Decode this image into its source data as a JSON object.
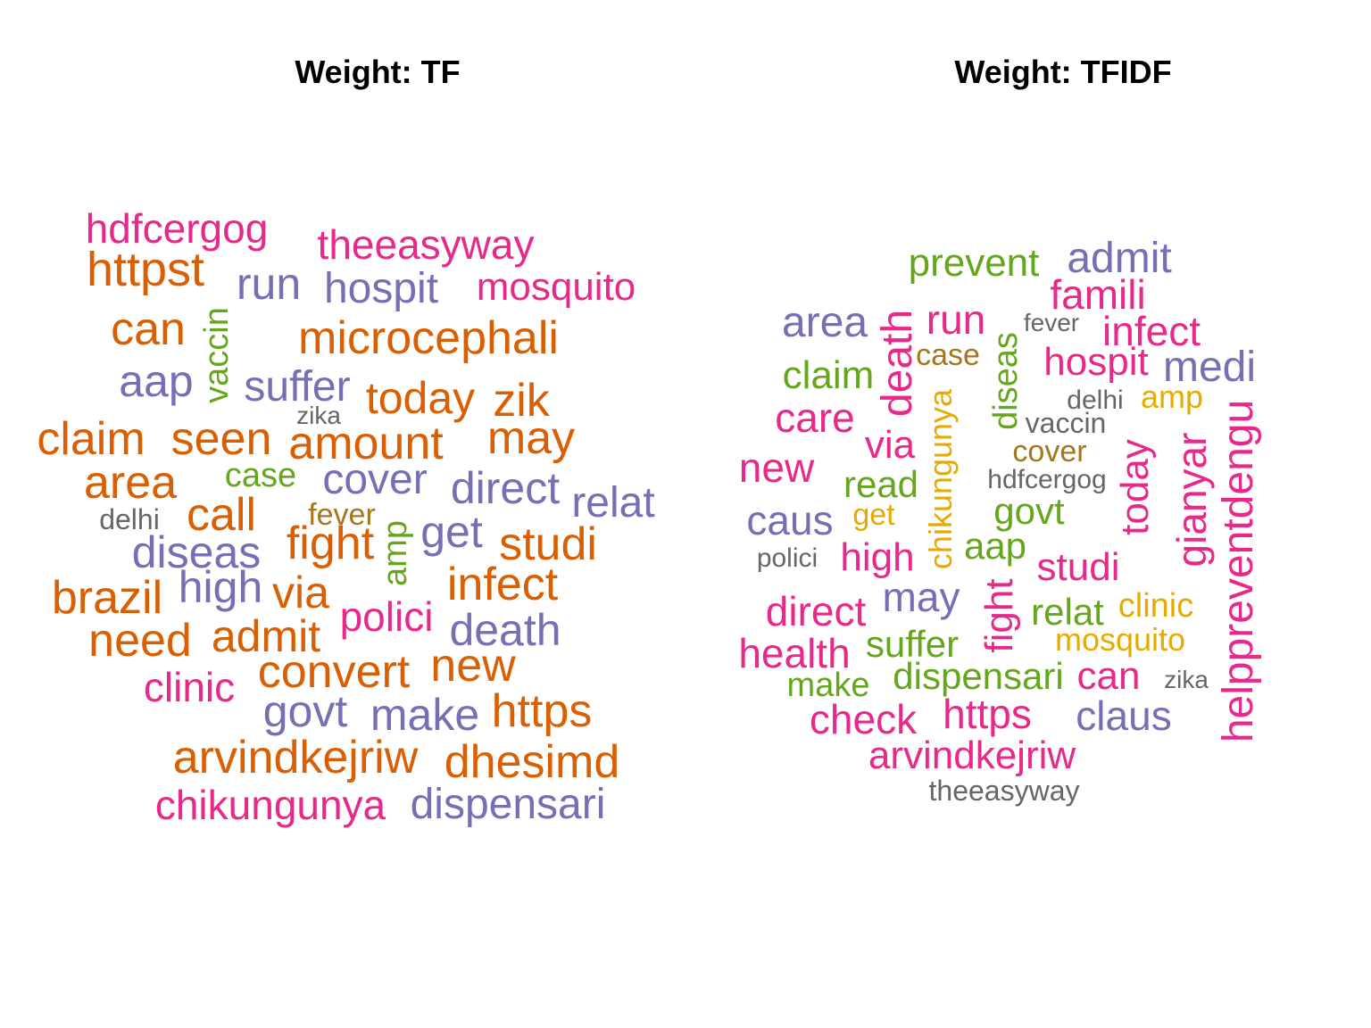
{
  "colors": {
    "orange": "#D95F02",
    "purple": "#7570B3",
    "pink": "#E7298A",
    "green": "#66A61E",
    "yellow": "#E6AB02",
    "brown": "#A6761D",
    "gray": "#666666"
  },
  "panels": [
    {
      "title": "Weight: TF",
      "words": [
        {
          "text": "hdfcergog",
          "color": "pink",
          "size": 46
        },
        {
          "text": "theeasyway",
          "color": "pink",
          "size": 46
        },
        {
          "text": "httpst",
          "color": "orange",
          "size": 54
        },
        {
          "text": "run",
          "color": "purple",
          "size": 50
        },
        {
          "text": "hospit",
          "color": "purple",
          "size": 48
        },
        {
          "text": "mosquito",
          "color": "pink",
          "size": 44
        },
        {
          "text": "can",
          "color": "orange",
          "size": 52
        },
        {
          "text": "vaccin",
          "color": "green",
          "size": 38,
          "vertical": true
        },
        {
          "text": "microcephali",
          "color": "orange",
          "size": 52
        },
        {
          "text": "aap",
          "color": "purple",
          "size": 50
        },
        {
          "text": "suffer",
          "color": "purple",
          "size": 48
        },
        {
          "text": "today",
          "color": "orange",
          "size": 50
        },
        {
          "text": "zik",
          "color": "orange",
          "size": 52
        },
        {
          "text": "zika",
          "color": "gray",
          "size": 28
        },
        {
          "text": "claim",
          "color": "orange",
          "size": 52
        },
        {
          "text": "seen",
          "color": "orange",
          "size": 52
        },
        {
          "text": "amount",
          "color": "orange",
          "size": 52
        },
        {
          "text": "may",
          "color": "orange",
          "size": 52
        },
        {
          "text": "area",
          "color": "orange",
          "size": 52
        },
        {
          "text": "case",
          "color": "green",
          "size": 38
        },
        {
          "text": "cover",
          "color": "purple",
          "size": 48
        },
        {
          "text": "direct",
          "color": "purple",
          "size": 50
        },
        {
          "text": "relat",
          "color": "purple",
          "size": 48
        },
        {
          "text": "delhi",
          "color": "gray",
          "size": 32
        },
        {
          "text": "call",
          "color": "orange",
          "size": 52
        },
        {
          "text": "fever",
          "color": "brown",
          "size": 34
        },
        {
          "text": "fight",
          "color": "orange",
          "size": 52
        },
        {
          "text": "amp",
          "color": "green",
          "size": 38,
          "vertical": true
        },
        {
          "text": "get",
          "color": "purple",
          "size": 50
        },
        {
          "text": "studi",
          "color": "orange",
          "size": 52
        },
        {
          "text": "diseas",
          "color": "purple",
          "size": 50
        },
        {
          "text": "high",
          "color": "purple",
          "size": 50
        },
        {
          "text": "via",
          "color": "orange",
          "size": 50
        },
        {
          "text": "infect",
          "color": "orange",
          "size": 52
        },
        {
          "text": "brazil",
          "color": "orange",
          "size": 52
        },
        {
          "text": "polici",
          "color": "pink",
          "size": 46
        },
        {
          "text": "death",
          "color": "purple",
          "size": 50
        },
        {
          "text": "need",
          "color": "orange",
          "size": 52
        },
        {
          "text": "admit",
          "color": "orange",
          "size": 50
        },
        {
          "text": "convert",
          "color": "orange",
          "size": 52
        },
        {
          "text": "new",
          "color": "orange",
          "size": 52
        },
        {
          "text": "clinic",
          "color": "pink",
          "size": 46
        },
        {
          "text": "govt",
          "color": "purple",
          "size": 50
        },
        {
          "text": "make",
          "color": "purple",
          "size": 50
        },
        {
          "text": "https",
          "color": "orange",
          "size": 52
        },
        {
          "text": "arvindkejriw",
          "color": "orange",
          "size": 52
        },
        {
          "text": "dhesimd",
          "color": "orange",
          "size": 52
        },
        {
          "text": "chikungunya",
          "color": "pink",
          "size": 46
        },
        {
          "text": "dispensari",
          "color": "purple",
          "size": 48
        }
      ]
    },
    {
      "title": "Weight: TFIDF",
      "words": [
        {
          "text": "prevent",
          "color": "green",
          "size": 44
        },
        {
          "text": "admit",
          "color": "purple",
          "size": 48
        },
        {
          "text": "famili",
          "color": "pink",
          "size": 46
        },
        {
          "text": "area",
          "color": "purple",
          "size": 48
        },
        {
          "text": "death",
          "color": "pink",
          "size": 48,
          "vertical": true
        },
        {
          "text": "run",
          "color": "pink",
          "size": 46
        },
        {
          "text": "fever",
          "color": "gray",
          "size": 28
        },
        {
          "text": "infect",
          "color": "pink",
          "size": 46
        },
        {
          "text": "case",
          "color": "brown",
          "size": 34
        },
        {
          "text": "diseas",
          "color": "green",
          "size": 38,
          "vertical": true
        },
        {
          "text": "hospit",
          "color": "pink",
          "size": 44
        },
        {
          "text": "medi",
          "color": "purple",
          "size": 48
        },
        {
          "text": "claim",
          "color": "green",
          "size": 44
        },
        {
          "text": "chikungunya",
          "color": "yellow",
          "size": 36,
          "vertical": true
        },
        {
          "text": "delhi",
          "color": "gray",
          "size": 30
        },
        {
          "text": "amp",
          "color": "yellow",
          "size": 36
        },
        {
          "text": "care",
          "color": "pink",
          "size": 46
        },
        {
          "text": "vaccin",
          "color": "gray",
          "size": 32
        },
        {
          "text": "via",
          "color": "pink",
          "size": 44
        },
        {
          "text": "cover",
          "color": "brown",
          "size": 34
        },
        {
          "text": "today",
          "color": "pink",
          "size": 44,
          "vertical": true
        },
        {
          "text": "gianyar",
          "color": "pink",
          "size": 46,
          "vertical": true
        },
        {
          "text": "helppreventdengu",
          "color": "pink",
          "size": 48,
          "vertical": true
        },
        {
          "text": "new",
          "color": "pink",
          "size": 46
        },
        {
          "text": "read",
          "color": "green",
          "size": 42
        },
        {
          "text": "hdfcergog",
          "color": "gray",
          "size": 30
        },
        {
          "text": "caus",
          "color": "purple",
          "size": 46
        },
        {
          "text": "get",
          "color": "yellow",
          "size": 34
        },
        {
          "text": "govt",
          "color": "green",
          "size": 42
        },
        {
          "text": "polici",
          "color": "gray",
          "size": 30
        },
        {
          "text": "high",
          "color": "pink",
          "size": 44
        },
        {
          "text": "aap",
          "color": "green",
          "size": 42
        },
        {
          "text": "studi",
          "color": "pink",
          "size": 44
        },
        {
          "text": "may",
          "color": "purple",
          "size": 46
        },
        {
          "text": "fight",
          "color": "pink",
          "size": 44,
          "vertical": true
        },
        {
          "text": "direct",
          "color": "pink",
          "size": 46
        },
        {
          "text": "relat",
          "color": "green",
          "size": 42
        },
        {
          "text": "clinic",
          "color": "yellow",
          "size": 38
        },
        {
          "text": "health",
          "color": "pink",
          "size": 46
        },
        {
          "text": "suffer",
          "color": "green",
          "size": 42
        },
        {
          "text": "mosquito",
          "color": "yellow",
          "size": 36
        },
        {
          "text": "make",
          "color": "green",
          "size": 38
        },
        {
          "text": "dispensari",
          "color": "green",
          "size": 42
        },
        {
          "text": "can",
          "color": "pink",
          "size": 44
        },
        {
          "text": "zika",
          "color": "gray",
          "size": 28
        },
        {
          "text": "check",
          "color": "pink",
          "size": 46
        },
        {
          "text": "https",
          "color": "pink",
          "size": 46
        },
        {
          "text": "claus",
          "color": "purple",
          "size": 46
        },
        {
          "text": "arvindkejriw",
          "color": "pink",
          "size": 44
        },
        {
          "text": "theeasyway",
          "color": "gray",
          "size": 32
        }
      ]
    }
  ]
}
